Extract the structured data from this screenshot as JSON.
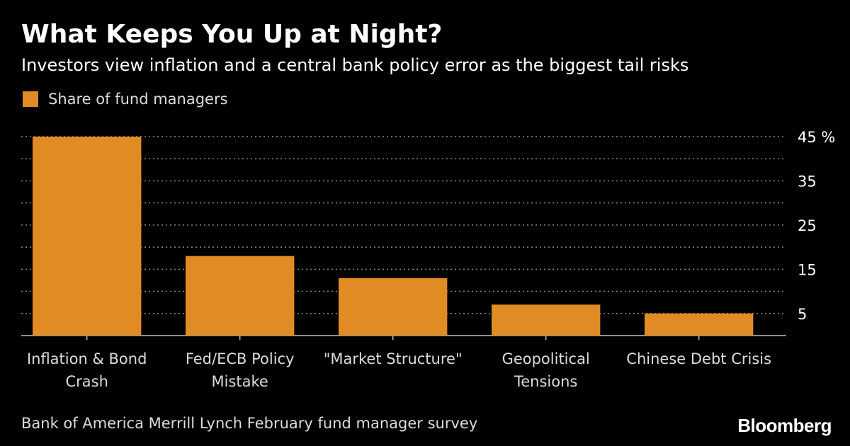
{
  "title": "What Keeps You Up at Night?",
  "subtitle": "Investors view inflation and a central bank policy error as the biggest tail risks",
  "legend": {
    "label": "Share of fund managers"
  },
  "source": "Bank of America Merrill Lynch February fund manager survey",
  "brand": "Bloomberg",
  "colors": {
    "background": "#000000",
    "bar": "#e18b25",
    "grid": "#8a8a8a",
    "text": "#ffffff"
  },
  "chart_data": {
    "type": "bar",
    "categories": [
      [
        "Inflation & Bond",
        "Crash"
      ],
      [
        "Fed/ECB Policy",
        "Mistake"
      ],
      [
        "\"Market Structure\""
      ],
      [
        "Geopolitical",
        "Tensions"
      ],
      [
        "Chinese Debt Crisis"
      ]
    ],
    "series": [
      {
        "name": "Share of fund managers",
        "values": [
          45,
          18,
          13,
          7,
          5
        ]
      }
    ],
    "ylim": [
      0,
      45
    ],
    "yticks": [
      5,
      15,
      25,
      35,
      45
    ],
    "ytick_labels": [
      "5",
      "15",
      "25",
      "35",
      "45 %"
    ],
    "minor_gridlines": [
      10,
      20,
      30,
      40
    ],
    "grid": true,
    "legend_position": "top-left"
  }
}
